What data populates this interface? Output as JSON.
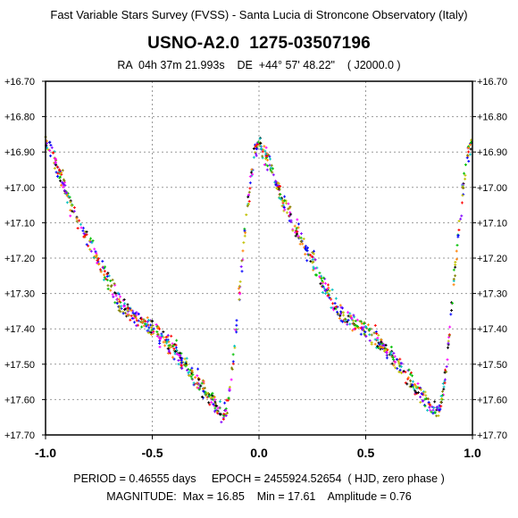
{
  "header": {
    "survey": "Fast Variable Stars Survey (FVSS) - Santa Lucia di Stroncone Observatory (Italy)",
    "star": "USNO-A2.0  1275-03507196",
    "coords": "RA  04h 37m 21.993s    DE  +44° 57' 48.22\"    ( J2000.0 )"
  },
  "footer": {
    "line1": "PERIOD = 0.46555 days     EPOCH = 2455924.52654  ( HJD, zero phase )",
    "line2": "MAGNITUDE:  Max = 16.85    Min = 17.61    Amplitude = 0.76"
  },
  "chart_data": {
    "type": "scatter",
    "title": "USNO-A2.0  1275-03507196",
    "xlabel": "",
    "ylabel": "",
    "xlim": [
      -1.0,
      1.0
    ],
    "ylim": [
      17.7,
      16.7
    ],
    "y_inverted": true,
    "x_ticks": [
      "-1.0",
      "-0.5",
      "0.0",
      "0.5",
      "1.0"
    ],
    "x_tick_values": [
      -1.0,
      -0.5,
      0.0,
      0.5,
      1.0
    ],
    "y_ticks": [
      "+16.70",
      "+16.80",
      "+16.90",
      "+17.00",
      "+17.10",
      "+17.20",
      "+17.30",
      "+17.40",
      "+17.50",
      "+17.60",
      "+17.70"
    ],
    "y_tick_values": [
      16.7,
      16.8,
      16.9,
      17.0,
      17.1,
      17.2,
      17.3,
      17.4,
      17.5,
      17.6,
      17.7
    ],
    "grid": true,
    "grid_style": "dotted",
    "marker": "small colored crosses",
    "period_days": 0.46555,
    "epoch_hjd": 2455924.52654,
    "mag_max": 16.85,
    "mag_min": 17.61,
    "amplitude": 0.76,
    "point_colors": [
      "#ff00ff",
      "#00c000",
      "#0000ff",
      "#ff0000",
      "#00c0c0",
      "#c0c000",
      "#000000",
      "#ff8000",
      "#8000ff",
      "#808000"
    ],
    "light_curve": {
      "phase": [
        0.0,
        0.05,
        0.1,
        0.15,
        0.2,
        0.25,
        0.3,
        0.35,
        0.4,
        0.45,
        0.5,
        0.55,
        0.6,
        0.65,
        0.7,
        0.75,
        0.8,
        0.83,
        0.85,
        0.88,
        0.9,
        0.93,
        0.96,
        0.98,
        1.0
      ],
      "mag": [
        16.87,
        16.93,
        17.02,
        17.09,
        17.15,
        17.21,
        17.27,
        17.33,
        17.36,
        17.38,
        17.4,
        17.43,
        17.46,
        17.5,
        17.54,
        17.58,
        17.62,
        17.64,
        17.62,
        17.5,
        17.35,
        17.15,
        16.98,
        16.9,
        16.87
      ]
    }
  }
}
